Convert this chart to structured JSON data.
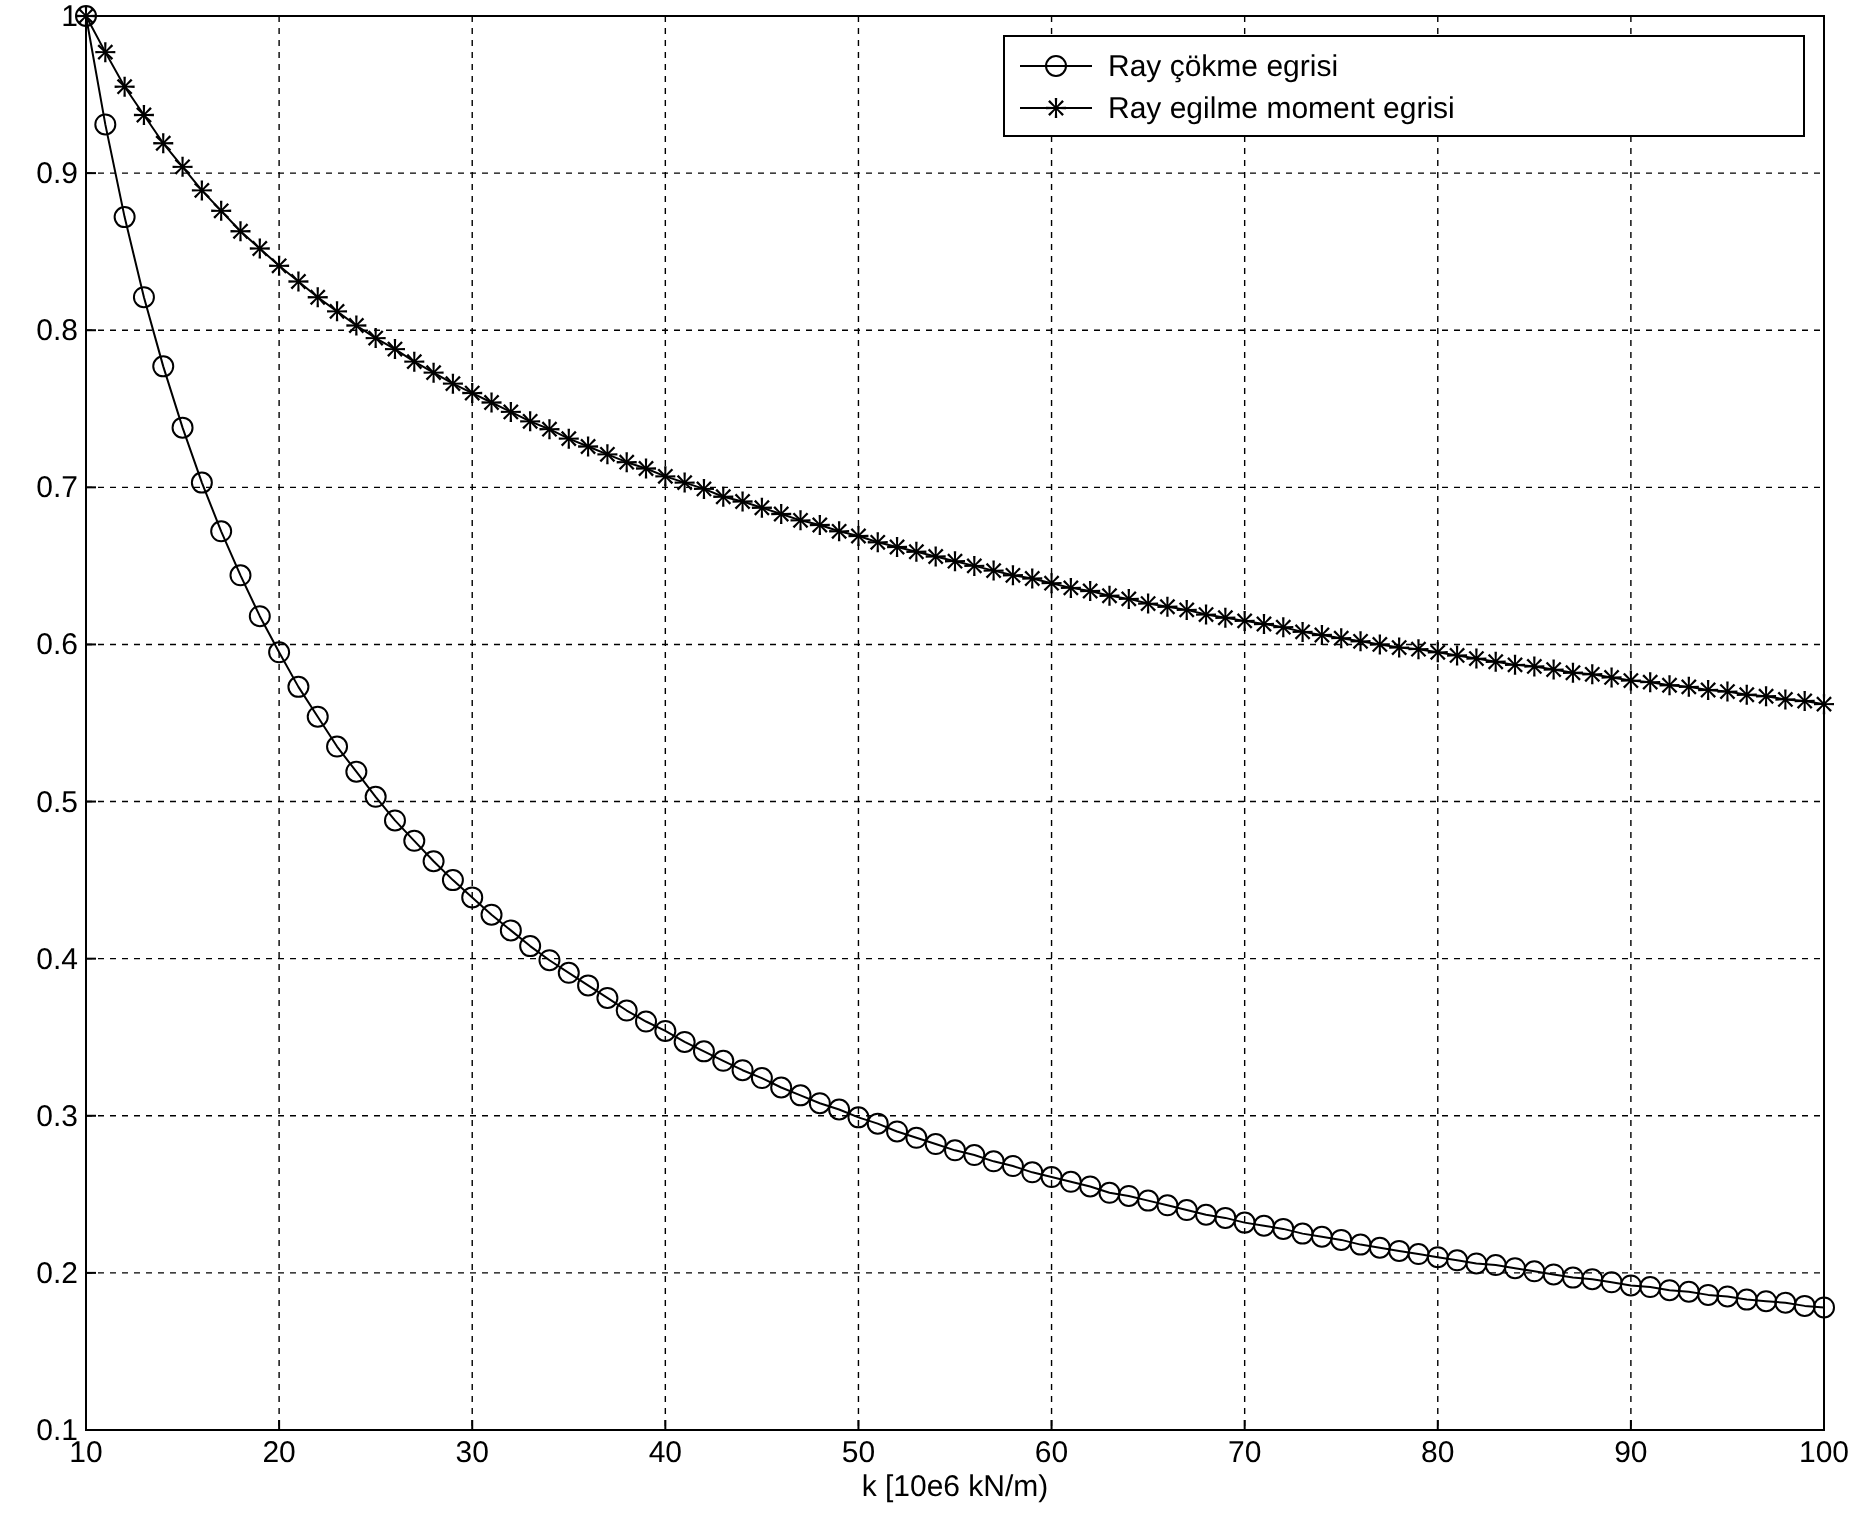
{
  "chart_data": {
    "type": "line",
    "xlabel": "k [10e6 kN/m)",
    "x": [
      10,
      11,
      12,
      13,
      14,
      15,
      16,
      17,
      18,
      19,
      20,
      21,
      22,
      23,
      24,
      25,
      26,
      27,
      28,
      29,
      30,
      31,
      32,
      33,
      34,
      35,
      36,
      37,
      38,
      39,
      40,
      41,
      42,
      43,
      44,
      45,
      46,
      47,
      48,
      49,
      50,
      51,
      52,
      53,
      54,
      55,
      56,
      57,
      58,
      59,
      60,
      61,
      62,
      63,
      64,
      65,
      66,
      67,
      68,
      69,
      70,
      71,
      72,
      73,
      74,
      75,
      76,
      77,
      78,
      79,
      80,
      81,
      82,
      83,
      84,
      85,
      86,
      87,
      88,
      89,
      90,
      91,
      92,
      93,
      94,
      95,
      96,
      97,
      98,
      99,
      100
    ],
    "series": [
      {
        "name": "Ray çökme egrisi",
        "color": "#000000",
        "marker": "circle",
        "values": [
          1,
          0.931,
          0.872,
          0.821,
          0.777,
          0.738,
          0.703,
          0.672,
          0.644,
          0.618,
          0.595,
          0.573,
          0.554,
          0.535,
          0.519,
          0.503,
          0.488,
          0.475,
          0.462,
          0.45,
          0.439,
          0.428,
          0.418,
          0.408,
          0.399,
          0.391,
          0.383,
          0.375,
          0.367,
          0.36,
          0.354,
          0.347,
          0.341,
          0.335,
          0.329,
          0.324,
          0.318,
          0.313,
          0.308,
          0.304,
          0.299,
          0.295,
          0.29,
          0.286,
          0.282,
          0.278,
          0.275,
          0.271,
          0.268,
          0.264,
          0.261,
          0.258,
          0.255,
          0.251,
          0.249,
          0.246,
          0.243,
          0.24,
          0.237,
          0.235,
          0.232,
          0.23,
          0.228,
          0.225,
          0.223,
          0.221,
          0.218,
          0.216,
          0.214,
          0.212,
          0.21,
          0.208,
          0.206,
          0.205,
          0.203,
          0.201,
          0.199,
          0.197,
          0.196,
          0.194,
          0.192,
          0.191,
          0.189,
          0.188,
          0.186,
          0.185,
          0.183,
          0.182,
          0.181,
          0.179,
          0.178
        ]
      },
      {
        "name": "Ray egilme moment egrisi",
        "color": "#000000",
        "marker": "star",
        "values": [
          1,
          0.977,
          0.955,
          0.937,
          0.919,
          0.904,
          0.889,
          0.876,
          0.863,
          0.852,
          0.841,
          0.831,
          0.821,
          0.812,
          0.803,
          0.795,
          0.788,
          0.78,
          0.773,
          0.766,
          0.76,
          0.754,
          0.748,
          0.742,
          0.737,
          0.731,
          0.726,
          0.721,
          0.716,
          0.712,
          0.707,
          0.703,
          0.699,
          0.694,
          0.691,
          0.687,
          0.683,
          0.679,
          0.676,
          0.672,
          0.669,
          0.665,
          0.662,
          0.659,
          0.656,
          0.653,
          0.65,
          0.647,
          0.644,
          0.642,
          0.639,
          0.636,
          0.634,
          0.631,
          0.629,
          0.626,
          0.624,
          0.622,
          0.619,
          0.617,
          0.615,
          0.613,
          0.611,
          0.608,
          0.606,
          0.604,
          0.602,
          0.6,
          0.598,
          0.597,
          0.595,
          0.593,
          0.591,
          0.589,
          0.587,
          0.586,
          0.584,
          0.582,
          0.581,
          0.579,
          0.577,
          0.576,
          0.574,
          0.573,
          0.571,
          0.57,
          0.568,
          0.567,
          0.565,
          0.564,
          0.562
        ]
      }
    ],
    "xlim": [
      10,
      100
    ],
    "xticks": [
      10,
      20,
      30,
      40,
      50,
      60,
      70,
      80,
      90,
      100
    ],
    "ylim": [
      0.1,
      1
    ],
    "yticks": [
      0.1,
      0.2,
      0.3,
      0.4,
      0.5,
      0.6,
      0.7,
      0.8,
      0.9,
      1
    ],
    "grid": true,
    "legend": "top right",
    "line_style": "solid"
  }
}
